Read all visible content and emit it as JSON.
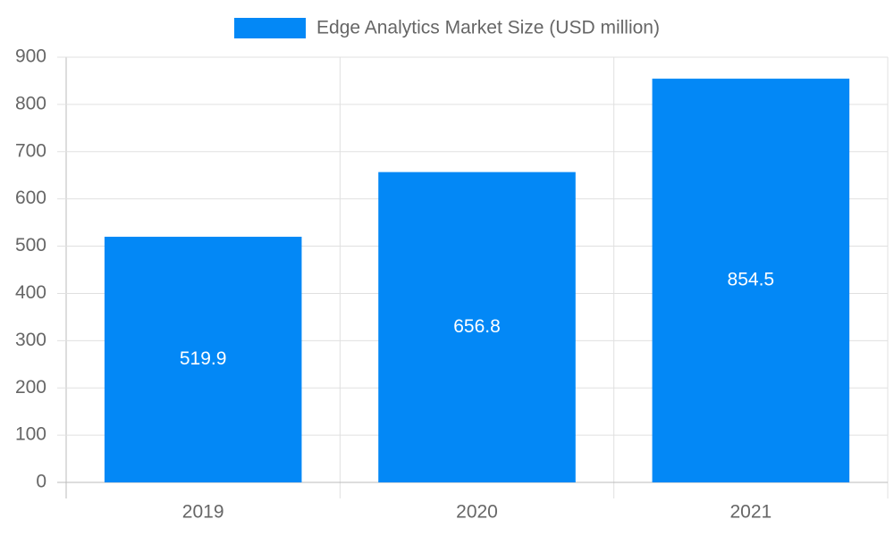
{
  "chart_data": {
    "type": "bar",
    "categories": [
      "2019",
      "2020",
      "2021"
    ],
    "series": [
      {
        "name": "Edge Analytics Market Size (USD million)",
        "color": "#0388f6",
        "values": [
          519.9,
          656.8,
          854.5
        ]
      }
    ],
    "ylim": [
      0,
      900
    ],
    "yticks": [
      0,
      100,
      200,
      300,
      400,
      500,
      600,
      700,
      800,
      900
    ],
    "grid": true,
    "legend": "top",
    "data_labels": true
  }
}
